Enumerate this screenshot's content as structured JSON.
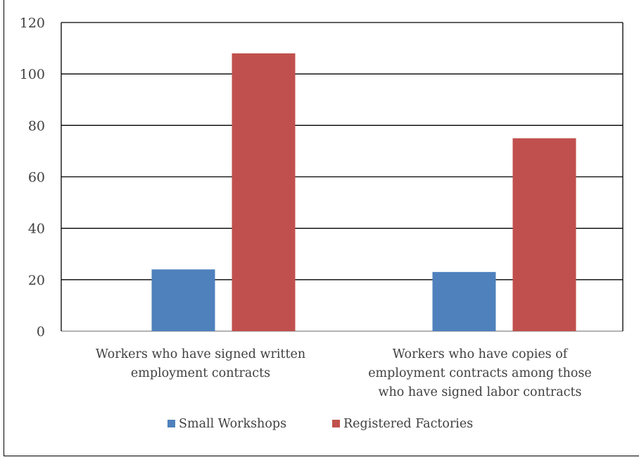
{
  "chart_data": {
    "type": "bar",
    "categories": [
      [
        "Workers who have signed written",
        "employment contracts"
      ],
      [
        "Workers who have copies of",
        "employment contracts among those",
        "who have signed labor contracts"
      ]
    ],
    "series": [
      {
        "name": "Small Workshops",
        "values": [
          24,
          23
        ],
        "color": "#4f81bd"
      },
      {
        "name": "Registered Factories",
        "values": [
          108,
          75
        ],
        "color": "#c0504d"
      }
    ],
    "yticks": [
      "0",
      "20",
      "40",
      "60",
      "80",
      "100",
      "120"
    ],
    "ylim": [
      0,
      120
    ],
    "grid": true,
    "legend": "bottom"
  }
}
